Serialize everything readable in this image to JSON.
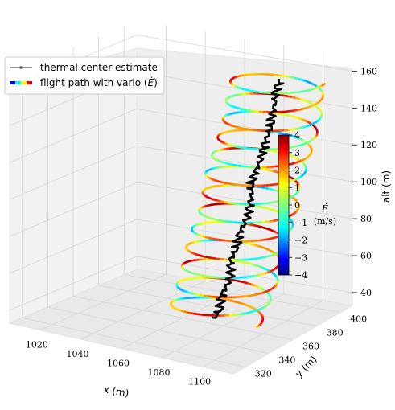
{
  "chart_data": {
    "type": "line3d",
    "legend": {
      "placement": "top-left",
      "entries": [
        {
          "label": "thermal center estimate",
          "style": "black line with dots"
        },
        {
          "label": "flight path with vario ($\\dot{E}$)",
          "style": "rainbow line"
        }
      ]
    },
    "axes": {
      "x": {
        "label": "x (m)",
        "ticks": [
          1020,
          1040,
          1060,
          1080,
          1100
        ],
        "range": [
          1005,
          1115
        ]
      },
      "y": {
        "label": "y (m)",
        "ticks": [
          320,
          340,
          360,
          380,
          400
        ],
        "range": [
          310,
          410
        ]
      },
      "z": {
        "label": "alt (m)",
        "ticks": [
          40,
          60,
          80,
          100,
          120,
          140,
          160
        ],
        "range": [
          33,
          168
        ]
      }
    },
    "colorbar": {
      "label_symbol": "$\\dot{E}$",
      "label_unit": "(m/s)",
      "ticks": [
        4,
        3,
        2,
        1,
        0,
        -1,
        -2,
        -3,
        -4
      ],
      "tick_labels": [
        "4",
        "3",
        "2",
        "1",
        "0",
        "−1",
        "−2",
        "−3",
        "−4"
      ],
      "range": [
        -4,
        4
      ],
      "colormap": "jet"
    },
    "thermal_center": {
      "description_note": "black polyline rising through the helix",
      "points_alt": [
        36,
        40,
        45,
        52,
        58,
        65,
        72,
        80,
        88,
        96,
        104,
        112,
        120,
        128,
        136,
        144,
        152,
        158
      ],
      "points_x": [
        1075,
        1077,
        1076,
        1078,
        1079,
        1078,
        1080,
        1081,
        1083,
        1084,
        1083,
        1085,
        1086,
        1088,
        1089,
        1090,
        1089,
        1091
      ],
      "points_y": [
        360,
        362,
        365,
        366,
        368,
        370,
        371,
        373,
        375,
        377,
        378,
        380,
        382,
        383,
        385,
        386,
        388,
        390
      ]
    },
    "flight_path": {
      "turns": 13,
      "alt_start": 36,
      "alt_end": 160,
      "radius_m": 22
    },
    "grid": true,
    "colors": {
      "pane": "#f2f2f2",
      "grid": "#d0d0d0",
      "center_line": "#000000"
    }
  }
}
